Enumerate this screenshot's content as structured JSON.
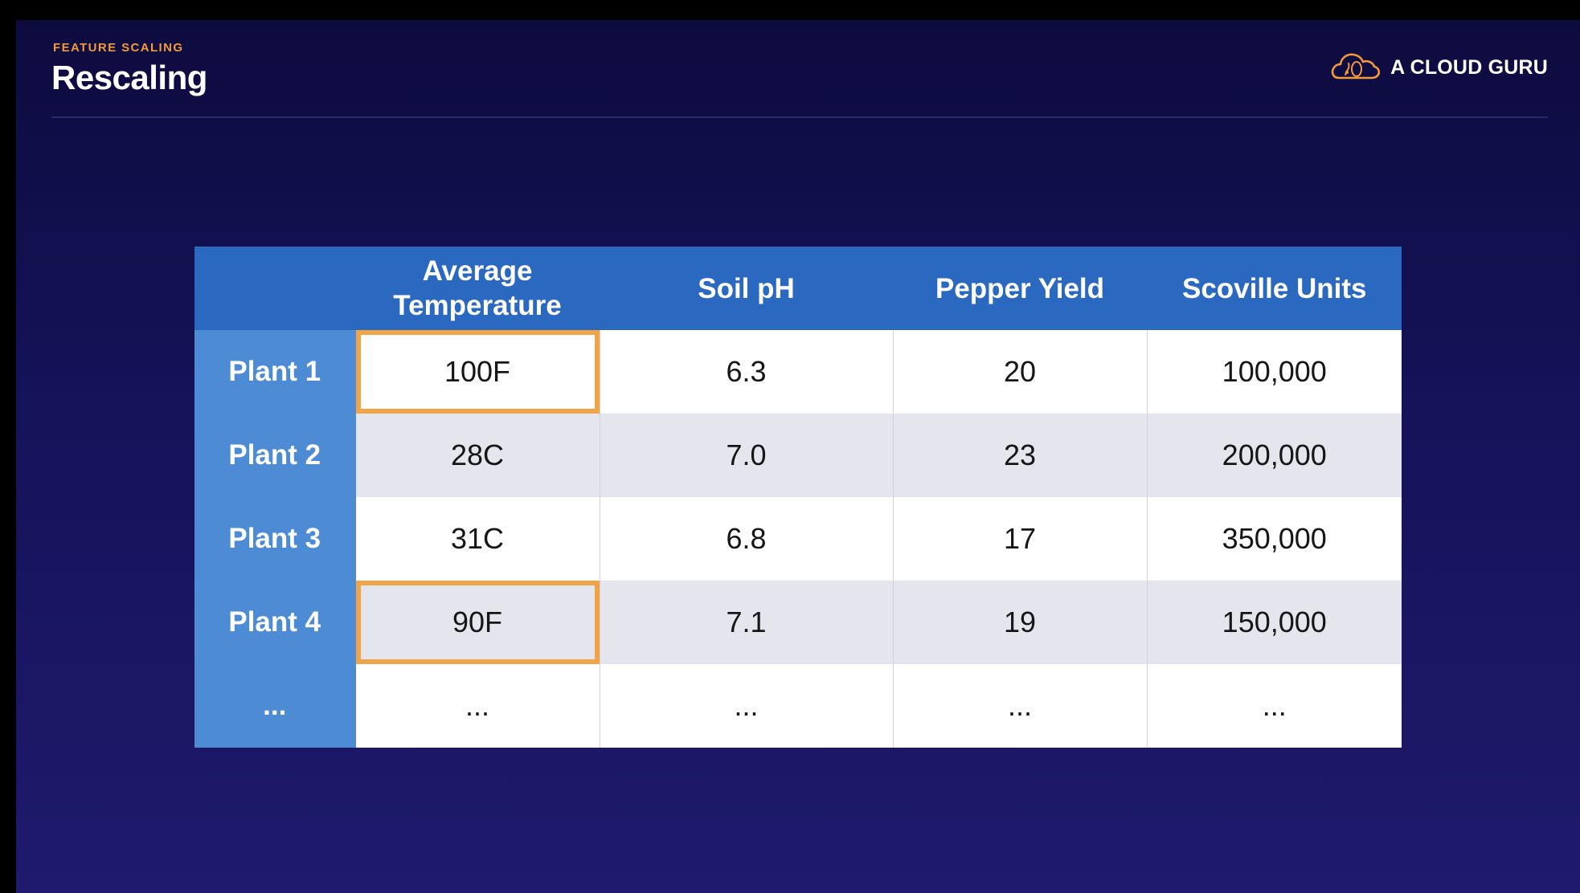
{
  "header": {
    "eyebrow": "FEATURE SCALING",
    "title": "Rescaling"
  },
  "brand": {
    "name": "A CLOUD GURU",
    "icon": "cloud-logo-icon",
    "accent_color": "#f29a3c"
  },
  "table": {
    "corner": "",
    "columns": [
      {
        "line1": "Average",
        "line2": "Temperature"
      },
      {
        "label": "Soil pH"
      },
      {
        "label": "Pepper Yield"
      },
      {
        "label": "Scoville Units"
      }
    ],
    "rows": [
      {
        "label": "Plant 1",
        "cells": [
          "100F",
          "6.3",
          "20",
          "100,000"
        ],
        "highlight": true
      },
      {
        "label": "Plant 2",
        "cells": [
          "28C",
          "7.0",
          "23",
          "200,000"
        ],
        "highlight": false
      },
      {
        "label": "Plant 3",
        "cells": [
          "31C",
          "6.8",
          "17",
          "350,000"
        ],
        "highlight": false
      },
      {
        "label": "Plant 4",
        "cells": [
          "90F",
          "7.1",
          "19",
          "150,000"
        ],
        "highlight": true
      },
      {
        "label": "...",
        "cells": [
          "...",
          "...",
          "...",
          "..."
        ],
        "highlight": false
      }
    ],
    "highlight_color": "#f0a448",
    "header_color": "#2b68c0",
    "row_header_color": "#4d8bd5"
  }
}
